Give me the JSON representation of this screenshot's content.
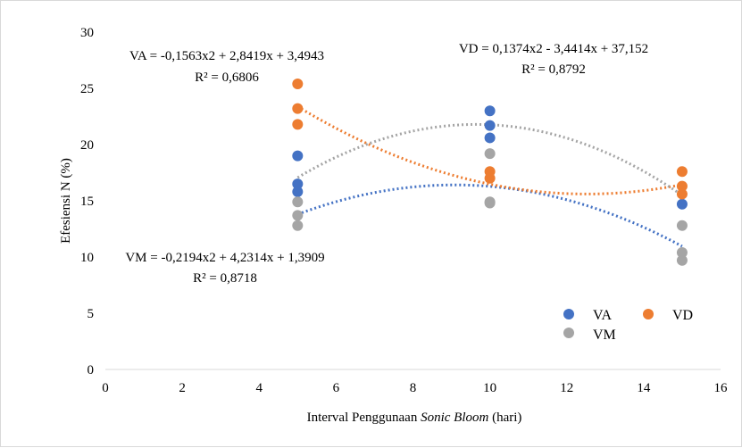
{
  "chart_data": {
    "type": "scatter",
    "xlabel_prefix": "Interval Penggunaan ",
    "xlabel_italic": "Sonic Bloom",
    "xlabel_suffix": " (hari)",
    "ylabel": "Efesiensi N (%)",
    "xlim": [
      0,
      16
    ],
    "ylim": [
      0,
      30
    ],
    "xticks": [
      0,
      2,
      4,
      6,
      8,
      10,
      12,
      14,
      16
    ],
    "yticks": [
      0,
      5,
      10,
      15,
      20,
      25,
      30
    ],
    "grid": false,
    "legend_position": "bottom-right",
    "series": [
      {
        "name": "VA",
        "color": "#4472c4",
        "points": [
          [
            5,
            19.0
          ],
          [
            5,
            16.5
          ],
          [
            5,
            15.8
          ],
          [
            10,
            23.0
          ],
          [
            10,
            21.7
          ],
          [
            10,
            20.6
          ],
          [
            15,
            14.7
          ]
        ],
        "trend": {
          "a": -0.1563,
          "b": 2.8419,
          "c": 3.4943
        },
        "equation": "VA = -0,1563x2 + 2,8419x + 3,4943",
        "r2": "R² = 0,6806"
      },
      {
        "name": "VD",
        "color": "#ed7d31",
        "points": [
          [
            5,
            25.4
          ],
          [
            5,
            23.2
          ],
          [
            5,
            21.8
          ],
          [
            10,
            17.6
          ],
          [
            10,
            17.0
          ],
          [
            15,
            17.6
          ],
          [
            15,
            16.3
          ],
          [
            15,
            15.6
          ]
        ],
        "trend": {
          "a": 0.1374,
          "b": -3.4414,
          "c": 37.152
        },
        "equation": "VD = 0,1374x2 - 3,4414x + 37,152",
        "r2": "R² = 0,8792"
      },
      {
        "name": "VM",
        "color": "#a5a5a5",
        "points": [
          [
            5,
            14.9
          ],
          [
            5,
            13.7
          ],
          [
            5,
            12.8
          ],
          [
            10,
            19.2
          ],
          [
            10,
            14.9
          ],
          [
            10,
            14.8
          ],
          [
            15,
            12.8
          ],
          [
            15,
            10.4
          ],
          [
            15,
            9.7
          ]
        ],
        "trend": {
          "a": -0.2194,
          "b": 4.2314,
          "c": 1.3909
        },
        "equation": "VM = -0,2194x2 + 4,2314x + 1,3909",
        "r2": "R² = 0,8718"
      }
    ]
  }
}
